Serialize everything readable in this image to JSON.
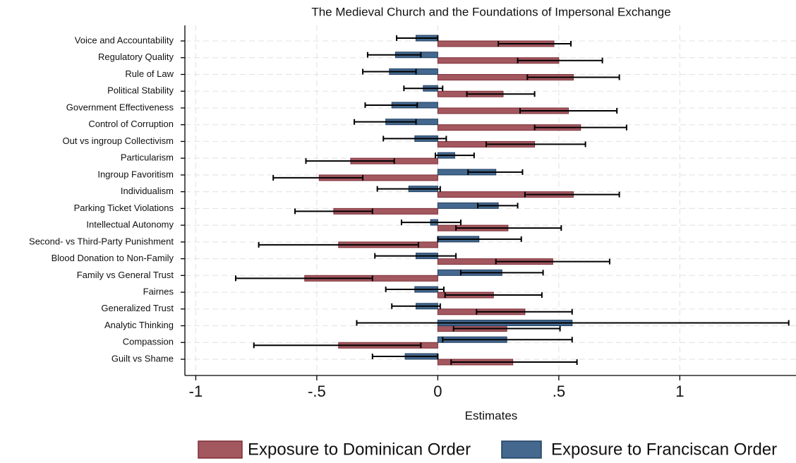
{
  "chart_data": {
    "type": "hbar-ci",
    "title": "The Medieval Church and the Foundations of Impersonal Exchange",
    "x_label": "Estimates",
    "categories": [
      "Voice and Accountability",
      "Regulatory Quality",
      "Rule of Law",
      "Political Stability",
      "Government Effectiveness",
      "Control of Corruption",
      "Out vs ingroup Collectivism",
      "Particularism",
      "Ingroup Favoritism",
      "Individualism",
      "Parking Ticket Violations",
      "Intellectual Autonomy",
      "Second- vs Third-Party Punishment",
      "Blood Donation to Non-Family",
      "Family vs General Trust",
      "Fairnes",
      "Generalized Trust",
      "Analytic Thinking",
      "Compassion",
      "Guilt vs Shame"
    ],
    "series": [
      {
        "name": "Exposure to Dominican Order",
        "color": "#a3575f",
        "stroke": "#7e2f37",
        "values": [
          0.48,
          0.5,
          0.56,
          0.27,
          0.54,
          0.59,
          0.4,
          -0.36,
          -0.49,
          0.56,
          -0.43,
          0.29,
          -0.41,
          0.475,
          -0.55,
          0.23,
          0.36,
          0.285,
          -0.41,
          0.31
        ],
        "ci": [
          [
            0.25,
            0.55
          ],
          [
            0.33,
            0.68
          ],
          [
            0.37,
            0.75
          ],
          [
            0.12,
            0.4
          ],
          [
            0.34,
            0.74
          ],
          [
            0.4,
            0.78
          ],
          [
            0.2,
            0.61
          ],
          [
            -0.545,
            -0.18
          ],
          [
            -0.68,
            -0.31
          ],
          [
            0.36,
            0.75
          ],
          [
            -0.59,
            -0.27
          ],
          [
            0.075,
            0.51
          ],
          [
            -0.74,
            -0.08
          ],
          [
            0.24,
            0.71
          ],
          [
            -0.835,
            -0.27
          ],
          [
            0.03,
            0.43
          ],
          [
            0.16,
            0.555
          ],
          [
            0.065,
            0.505
          ],
          [
            -0.76,
            -0.07
          ],
          [
            0.055,
            0.575
          ]
        ]
      },
      {
        "name": "Exposure to Franciscan Order",
        "color": "#44688e",
        "stroke": "#1f3f60",
        "values": [
          -0.09,
          -0.175,
          -0.2,
          -0.06,
          -0.19,
          -0.215,
          -0.095,
          0.07,
          0.24,
          -0.12,
          0.25,
          -0.03,
          0.17,
          -0.09,
          0.265,
          -0.095,
          -0.09,
          0.555,
          0.285,
          -0.135
        ],
        "ci": [
          [
            -0.17,
            0.0
          ],
          [
            -0.29,
            -0.07
          ],
          [
            -0.31,
            -0.09
          ],
          [
            -0.14,
            0.02
          ],
          [
            -0.3,
            -0.085
          ],
          [
            -0.345,
            -0.09
          ],
          [
            -0.225,
            0.035
          ],
          [
            -0.01,
            0.15
          ],
          [
            0.125,
            0.35
          ],
          [
            -0.25,
            0.01
          ],
          [
            0.165,
            0.33
          ],
          [
            -0.15,
            0.095
          ],
          [
            0.0,
            0.345
          ],
          [
            -0.26,
            0.075
          ],
          [
            0.095,
            0.435
          ],
          [
            -0.215,
            0.025
          ],
          [
            -0.19,
            0.01
          ],
          [
            -0.335,
            1.45
          ],
          [
            0.02,
            0.555
          ],
          [
            -0.27,
            0.0
          ]
        ]
      }
    ],
    "xlim": [
      -1.045,
      1.48
    ],
    "xticks": [
      {
        "value": -1,
        "label": "-1"
      },
      {
        "value": -0.5,
        "label": "-.5"
      },
      0,
      {
        "value": 0.5,
        "label": ".5"
      },
      1
    ],
    "grid": true,
    "legend": "bottom"
  }
}
